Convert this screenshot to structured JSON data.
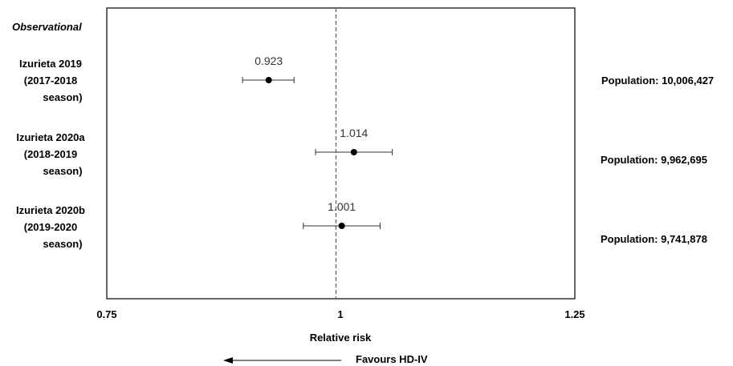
{
  "chart_data": {
    "type": "forest",
    "section_label": "Observational",
    "xlabel": "Relative risk",
    "xlim": [
      0.75,
      1.25
    ],
    "x_ticks": [
      "0.75",
      "1",
      "1.25"
    ],
    "reference_line": 1.0,
    "direction_label": "Favours HD-IV",
    "studies": [
      {
        "label_lines": [
          "Izurieta 2019",
          "(2017-2018",
          "season)"
        ],
        "estimate": 0.923,
        "estimate_label": "0.923",
        "ci_low": 0.895,
        "ci_high": 0.95,
        "population": "Population: 10,006,427"
      },
      {
        "label_lines": [
          "Izurieta 2020a",
          "(2018-2019",
          "season)"
        ],
        "estimate": 1.014,
        "estimate_label": "1.014",
        "ci_low": 0.973,
        "ci_high": 1.055,
        "population": "Population: 9,962,695"
      },
      {
        "label_lines": [
          "Izurieta 2020b",
          "(2019-2020",
          "season)"
        ],
        "estimate": 1.001,
        "estimate_label": "1.001",
        "ci_low": 0.96,
        "ci_high": 1.042,
        "population": "Population: 9,741,878"
      }
    ]
  }
}
